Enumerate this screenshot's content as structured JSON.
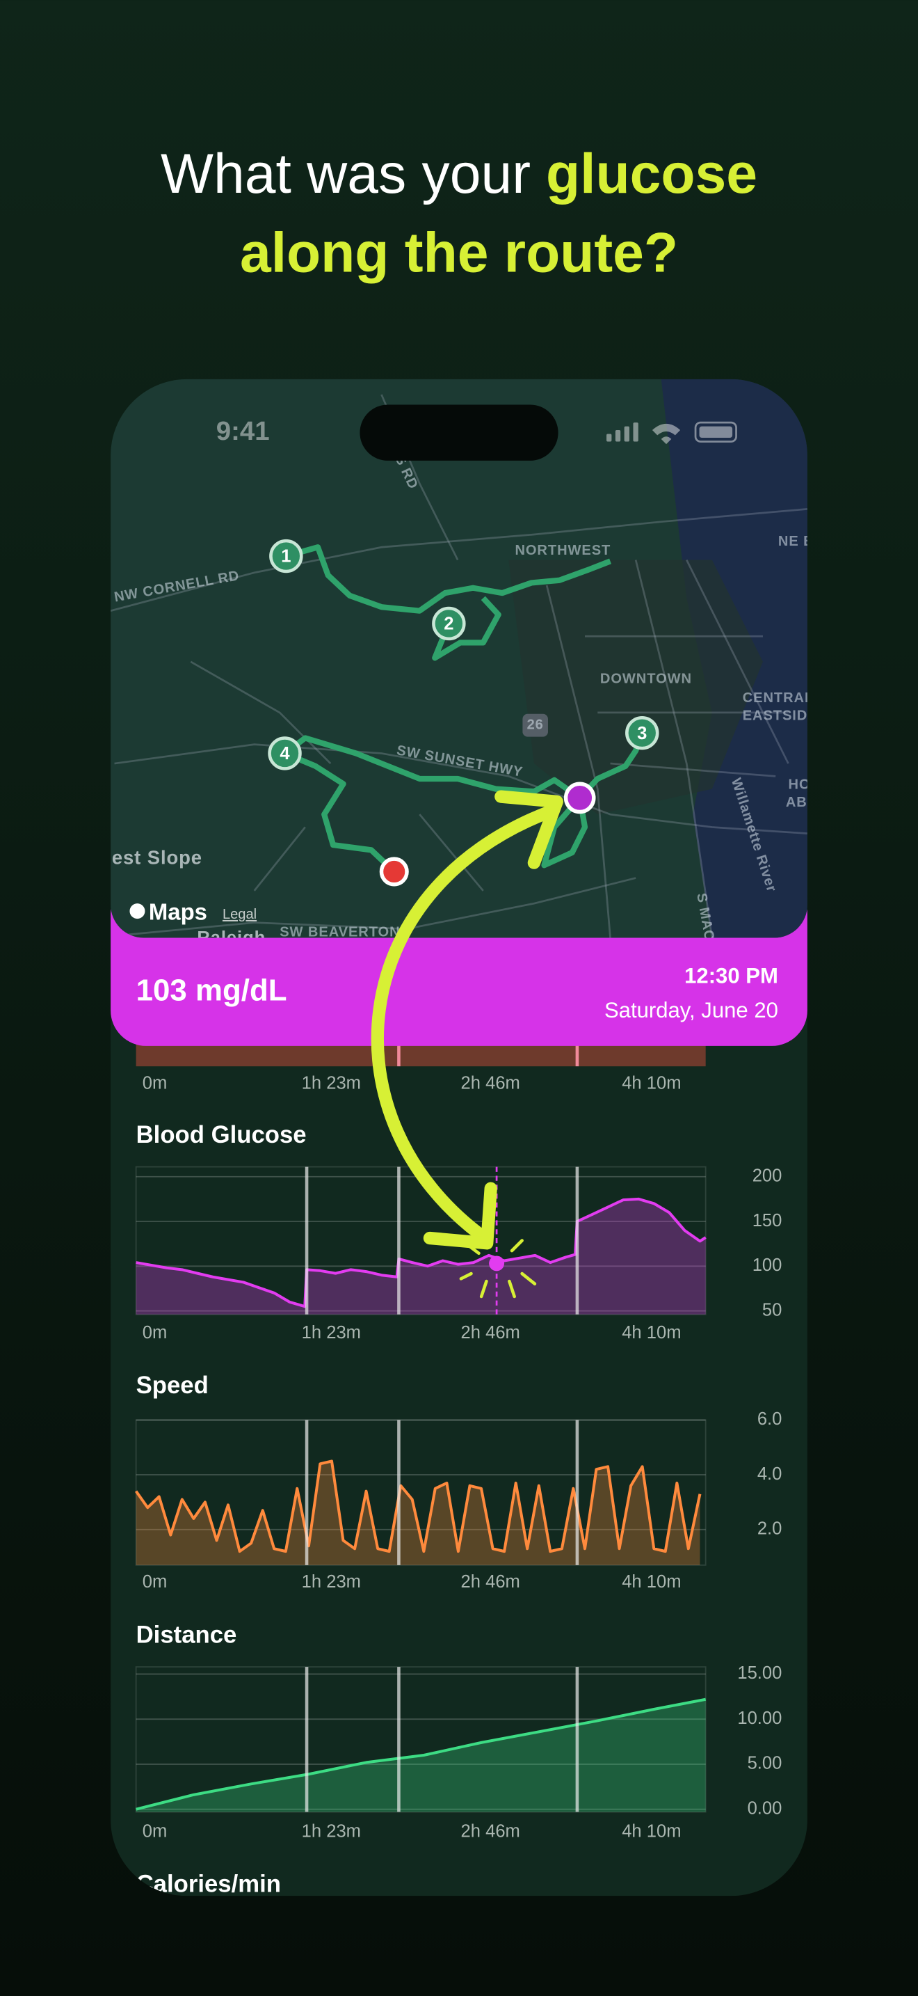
{
  "headline": {
    "lead": "What was your",
    "highlight": "glucose",
    "line2": "along the route?"
  },
  "status_bar": {
    "time": "9:41"
  },
  "map": {
    "labels": [
      "NW CORNELL RD",
      "NORTHWEST",
      "DOWNTOWN",
      "CENTRAL",
      "EASTSIDE",
      "SW SUNSET HWY",
      "26",
      "est Slope",
      "Raleigh",
      "SW BEAVERTON",
      "Willamette River",
      "NE E",
      "HO",
      "AB",
      "S MAC",
      "ELENS RD"
    ],
    "stops": [
      "1",
      "2",
      "3",
      "4"
    ],
    "attribution": "Maps",
    "legal": "Legal"
  },
  "reading": {
    "value": 103,
    "label": "103 mg/dL",
    "time": "12:30 PM",
    "date": "Saturday, June 20"
  },
  "chart_data": [
    {
      "type": "area",
      "xlim": [
        0,
        297
      ],
      "xticks": [
        {
          "value": 0,
          "label": "0m"
        },
        {
          "value": 83,
          "label": "1h 23m"
        },
        {
          "value": 166,
          "label": "2h 46m"
        },
        {
          "value": 250,
          "label": "4h 10m"
        }
      ],
      "vlines": [
        137,
        230
      ]
    },
    {
      "type": "area",
      "title": "Blood Glucose",
      "x": [
        0,
        8,
        16,
        24,
        32,
        40,
        48,
        56,
        64,
        72,
        80,
        88,
        89,
        96,
        104,
        112,
        120,
        128,
        136,
        137,
        144,
        152,
        160,
        168,
        176,
        184,
        192,
        200,
        208,
        216,
        224,
        229,
        230,
        238,
        246,
        254,
        262,
        270,
        278,
        286,
        294,
        297
      ],
      "series": [
        {
          "color": "#e23cf0",
          "values": [
            104,
            101,
            98,
            96,
            92,
            88,
            85,
            82,
            76,
            70,
            60,
            55,
            96,
            95,
            92,
            96,
            94,
            90,
            88,
            108,
            104,
            100,
            106,
            102,
            104,
            112,
            106,
            109,
            112,
            104,
            110,
            113,
            150,
            158,
            166,
            174,
            175,
            170,
            160,
            140,
            128,
            132
          ]
        }
      ],
      "xlim": [
        0,
        297
      ],
      "xticks": [
        {
          "value": 0,
          "label": "0m"
        },
        {
          "value": 83,
          "label": "1h 23m"
        },
        {
          "value": 166,
          "label": "2h 46m"
        },
        {
          "value": 250,
          "label": "4h 10m"
        }
      ],
      "ylim": [
        46,
        211
      ],
      "yticks": [
        50,
        100,
        150,
        200
      ],
      "vlines": [
        89,
        137,
        230
      ],
      "selected_x": 188,
      "grid": true
    },
    {
      "type": "area",
      "title": "Speed",
      "x": [
        0,
        6,
        12,
        18,
        24,
        30,
        36,
        42,
        48,
        54,
        60,
        66,
        72,
        78,
        84,
        90,
        96,
        102,
        108,
        114,
        120,
        126,
        132,
        138,
        144,
        150,
        156,
        162,
        168,
        174,
        180,
        186,
        192,
        198,
        204,
        210,
        216,
        222,
        228,
        234,
        240,
        246,
        252,
        258,
        264,
        270,
        276,
        282,
        288,
        294
      ],
      "series": [
        {
          "color": "#ff8a3d",
          "values": [
            3.4,
            2.8,
            3.2,
            1.8,
            3.1,
            2.4,
            3.0,
            1.6,
            2.9,
            1.2,
            1.5,
            2.7,
            1.3,
            1.2,
            3.5,
            1.4,
            4.4,
            4.5,
            1.6,
            1.3,
            3.4,
            1.3,
            1.2,
            3.6,
            3.1,
            1.2,
            3.5,
            3.7,
            1.2,
            3.6,
            3.5,
            1.3,
            1.2,
            3.7,
            1.3,
            3.6,
            1.2,
            1.3,
            3.5,
            1.3,
            4.2,
            4.3,
            1.3,
            3.6,
            4.3,
            1.3,
            1.2,
            3.7,
            1.3,
            3.3
          ]
        }
      ],
      "xlim": [
        0,
        297
      ],
      "xticks": [
        {
          "value": 0,
          "label": "0m"
        },
        {
          "value": 83,
          "label": "1h 23m"
        },
        {
          "value": 166,
          "label": "2h 46m"
        },
        {
          "value": 250,
          "label": "4h 10m"
        }
      ],
      "ylim": [
        0.7,
        6.0
      ],
      "yticks": [
        {
          "value": 2,
          "label": "2.0"
        },
        {
          "value": 4,
          "label": "4.0"
        },
        {
          "value": 6,
          "label": "6.0"
        }
      ],
      "vlines": [
        89,
        137,
        230
      ],
      "grid": true
    },
    {
      "type": "area",
      "title": "Distance",
      "x": [
        0,
        30,
        60,
        90,
        120,
        150,
        180,
        210,
        240,
        270,
        297
      ],
      "series": [
        {
          "color": "#3ddc84",
          "values": [
            0,
            1.6,
            2.8,
            3.9,
            5.2,
            6.0,
            7.4,
            8.6,
            9.8,
            11.1,
            12.2
          ]
        }
      ],
      "xlim": [
        0,
        297
      ],
      "xticks": [
        {
          "value": 0,
          "label": "0m"
        },
        {
          "value": 83,
          "label": "1h 23m"
        },
        {
          "value": 166,
          "label": "2h 46m"
        },
        {
          "value": 250,
          "label": "4h 10m"
        }
      ],
      "ylim": [
        -0.3,
        15.8
      ],
      "yticks": [
        {
          "value": 0,
          "label": "0.00"
        },
        {
          "value": 5,
          "label": "5.00"
        },
        {
          "value": 10,
          "label": "10.00"
        },
        {
          "value": 15,
          "label": "15.00"
        }
      ],
      "vlines": [
        89,
        137,
        230
      ],
      "grid": true
    }
  ],
  "next_section_title": "Calories/min"
}
